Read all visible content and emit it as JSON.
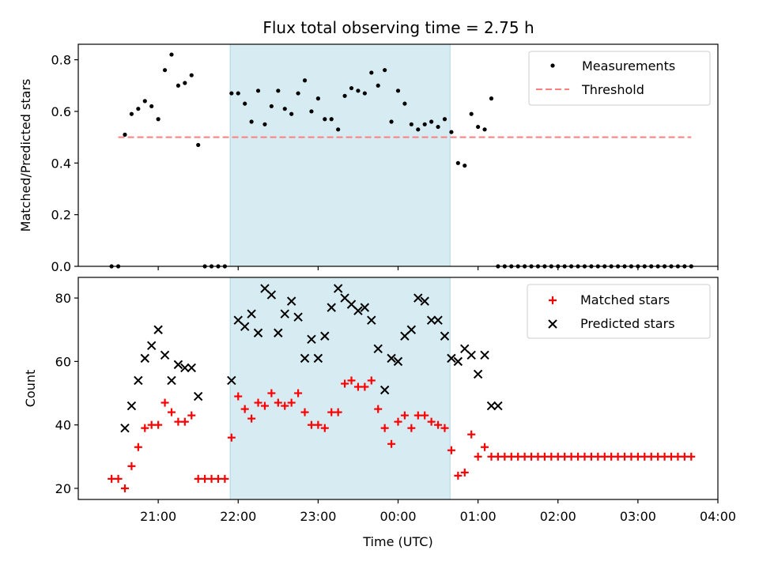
{
  "title": "Flux total observing time = 2.75 h",
  "colors": {
    "measurements": "#000000",
    "threshold": "#ff7f7f",
    "matched": "#ff0000",
    "predicted": "#000000",
    "shade": "#add8e6"
  },
  "chart_data": [
    {
      "type": "scatter",
      "ylabel": "Matched/Predicted stars",
      "ylim": [
        0,
        0.86
      ],
      "yticks": [
        0.0,
        0.2,
        0.4,
        0.6,
        0.8
      ],
      "ytick_labels": [
        "0.0",
        "0.2",
        "0.4",
        "0.6",
        "0.8"
      ],
      "legend": {
        "placement": "top-right",
        "entries": [
          "Measurements",
          "Threshold"
        ]
      },
      "series": [
        {
          "name": "Measurements",
          "x": [
            "20:25",
            "20:30",
            "20:35",
            "20:40",
            "20:45",
            "20:50",
            "20:55",
            "21:00",
            "21:05",
            "21:10",
            "21:15",
            "21:20",
            "21:25",
            "21:30",
            "21:35",
            "21:40",
            "21:45",
            "21:50",
            "21:55",
            "22:00",
            "22:05",
            "22:10",
            "22:15",
            "22:20",
            "22:25",
            "22:30",
            "22:35",
            "22:40",
            "22:45",
            "22:50",
            "22:55",
            "23:00",
            "23:05",
            "23:10",
            "23:15",
            "23:20",
            "23:25",
            "23:30",
            "23:35",
            "23:40",
            "23:45",
            "23:50",
            "23:55",
            "00:00",
            "00:05",
            "00:10",
            "00:15",
            "00:20",
            "00:25",
            "00:30",
            "00:35",
            "00:40",
            "00:45",
            "00:50",
            "00:55",
            "01:00",
            "01:05",
            "01:10",
            "01:15",
            "01:20",
            "01:25",
            "01:30",
            "01:35",
            "01:40",
            "01:45",
            "01:50",
            "01:55",
            "02:00",
            "02:05",
            "02:10",
            "02:15",
            "02:20",
            "02:25",
            "02:30",
            "02:35",
            "02:40",
            "02:45",
            "02:50",
            "02:55",
            "03:00",
            "03:05",
            "03:10",
            "03:15",
            "03:20",
            "03:25",
            "03:30",
            "03:35",
            "03:40"
          ],
          "y": [
            0.0,
            0.0,
            0.51,
            0.59,
            0.61,
            0.64,
            0.62,
            0.57,
            0.76,
            0.82,
            0.7,
            0.71,
            0.74,
            0.47,
            0.0,
            0.0,
            0.0,
            0.0,
            0.67,
            0.67,
            0.63,
            0.56,
            0.68,
            0.55,
            0.62,
            0.68,
            0.61,
            0.59,
            0.67,
            0.72,
            0.6,
            0.65,
            0.57,
            0.57,
            0.53,
            0.66,
            0.69,
            0.68,
            0.67,
            0.75,
            0.7,
            0.76,
            0.56,
            0.68,
            0.63,
            0.55,
            0.53,
            0.55,
            0.56,
            0.54,
            0.57,
            0.52,
            0.4,
            0.39,
            0.59,
            0.54,
            0.53,
            0.65,
            0.0,
            0.0,
            0.0,
            0.0,
            0.0,
            0.0,
            0.0,
            0.0,
            0.0,
            0.0,
            0.0,
            0.0,
            0.0,
            0.0,
            0.0,
            0.0,
            0.0,
            0.0,
            0.0,
            0.0,
            0.0,
            0.0,
            0.0,
            0.0,
            0.0,
            0.0,
            0.0,
            0.0,
            0.0,
            0.0
          ]
        },
        {
          "name": "Threshold",
          "type": "line",
          "x": [
            "20:30",
            "03:40"
          ],
          "y": [
            0.5,
            0.5
          ]
        }
      ]
    },
    {
      "type": "scatter",
      "ylabel": "Count",
      "xlabel": "Time (UTC)",
      "ylim": [
        16.5,
        86.5
      ],
      "yticks": [
        20,
        40,
        60,
        80
      ],
      "ytick_labels": [
        "20",
        "40",
        "60",
        "80"
      ],
      "xticks": [
        "21:00",
        "22:00",
        "23:00",
        "00:00",
        "01:00",
        "02:00",
        "03:00",
        "04:00"
      ],
      "xlim": [
        "20:00",
        "04:00"
      ],
      "legend": {
        "placement": "top-right",
        "entries": [
          "Matched stars",
          "Predicted stars"
        ]
      },
      "series": [
        {
          "name": "Matched stars",
          "x": [
            "20:25",
            "20:30",
            "20:35",
            "20:40",
            "20:45",
            "20:50",
            "20:55",
            "21:00",
            "21:05",
            "21:10",
            "21:15",
            "21:20",
            "21:25",
            "21:30",
            "21:35",
            "21:40",
            "21:45",
            "21:50",
            "21:55",
            "22:00",
            "22:05",
            "22:10",
            "22:15",
            "22:20",
            "22:25",
            "22:30",
            "22:35",
            "22:40",
            "22:45",
            "22:50",
            "22:55",
            "23:00",
            "23:05",
            "23:10",
            "23:15",
            "23:20",
            "23:25",
            "23:30",
            "23:35",
            "23:40",
            "23:45",
            "23:50",
            "23:55",
            "00:00",
            "00:05",
            "00:10",
            "00:15",
            "00:20",
            "00:25",
            "00:30",
            "00:35",
            "00:40",
            "00:45",
            "00:50",
            "00:55",
            "01:00",
            "01:05",
            "01:10",
            "01:15",
            "01:20",
            "01:25",
            "01:30",
            "01:35",
            "01:40",
            "01:45",
            "01:50",
            "01:55",
            "02:00",
            "02:05",
            "02:10",
            "02:15",
            "02:20",
            "02:25",
            "02:30",
            "02:35",
            "02:40",
            "02:45",
            "02:50",
            "02:55",
            "03:00",
            "03:05",
            "03:10",
            "03:15",
            "03:20",
            "03:25",
            "03:30",
            "03:35",
            "03:40"
          ],
          "y": [
            23,
            23,
            20,
            27,
            33,
            39,
            40,
            40,
            47,
            44,
            41,
            41,
            43,
            23,
            23,
            23,
            23,
            23,
            36,
            49,
            45,
            42,
            47,
            46,
            50,
            47,
            46,
            47,
            50,
            44,
            40,
            40,
            39,
            44,
            44,
            53,
            54,
            52,
            52,
            54,
            45,
            39,
            34,
            41,
            43,
            39,
            43,
            43,
            41,
            40,
            39,
            32,
            24,
            25,
            37,
            30,
            33,
            30,
            30,
            30,
            30,
            30,
            30,
            30,
            30,
            30,
            30,
            30,
            30,
            30,
            30,
            30,
            30,
            30,
            30,
            30,
            30,
            30,
            30,
            30,
            30,
            30,
            30,
            30,
            30,
            30,
            30,
            30
          ]
        },
        {
          "name": "Predicted stars",
          "x": [
            "20:35",
            "20:40",
            "20:45",
            "20:50",
            "20:55",
            "21:00",
            "21:05",
            "21:10",
            "21:15",
            "21:20",
            "21:25",
            "21:30",
            "21:55",
            "22:00",
            "22:05",
            "22:10",
            "22:15",
            "22:20",
            "22:25",
            "22:30",
            "22:35",
            "22:40",
            "22:45",
            "22:50",
            "22:55",
            "23:00",
            "23:05",
            "23:10",
            "23:15",
            "23:20",
            "23:25",
            "23:30",
            "23:35",
            "23:40",
            "23:45",
            "23:50",
            "23:55",
            "00:00",
            "00:05",
            "00:10",
            "00:15",
            "00:20",
            "00:25",
            "00:30",
            "00:35",
            "00:40",
            "00:45",
            "00:50",
            "00:55",
            "01:00",
            "01:05",
            "01:10",
            "01:15"
          ],
          "y": [
            39,
            46,
            54,
            61,
            65,
            70,
            62,
            54,
            59,
            58,
            58,
            49,
            54,
            73,
            71,
            75,
            69,
            83,
            81,
            69,
            75,
            79,
            74,
            61,
            67,
            61,
            68,
            77,
            83,
            80,
            78,
            76,
            77,
            73,
            64,
            51,
            61,
            60,
            68,
            70,
            80,
            79,
            73,
            73,
            68,
            61,
            60,
            64,
            62,
            56,
            62,
            46,
            46
          ]
        }
      ]
    }
  ],
  "shaded_region": {
    "x_start": "21:54",
    "x_end": "00:39"
  }
}
